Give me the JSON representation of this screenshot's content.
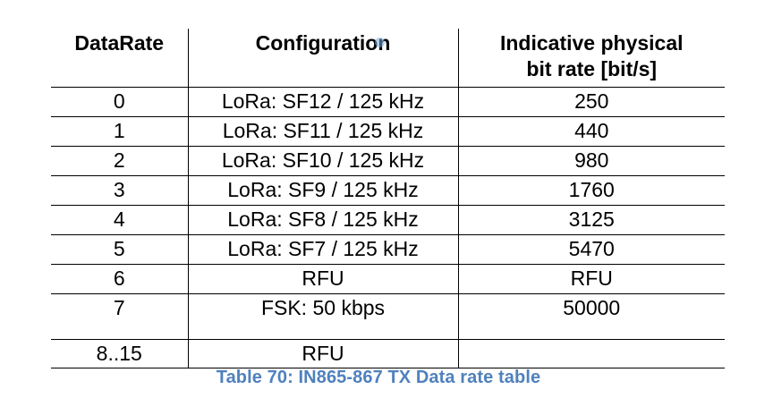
{
  "table": {
    "headers": [
      "DataRate",
      "Configuration",
      "Indicative physical bit rate [bit/s]"
    ],
    "header_lines": {
      "rate_line1": "Indicative physical",
      "rate_line2": "bit rate [bit/s]"
    },
    "rows": [
      {
        "datarate": "0",
        "configuration": "LoRa: SF12 / 125 kHz",
        "bitrate": "250"
      },
      {
        "datarate": "1",
        "configuration": "LoRa: SF11 / 125 kHz",
        "bitrate": "440"
      },
      {
        "datarate": "2",
        "configuration": "LoRa: SF10 / 125 kHz",
        "bitrate": "980"
      },
      {
        "datarate": "3",
        "configuration": "LoRa: SF9 / 125 kHz",
        "bitrate": "1760"
      },
      {
        "datarate": "4",
        "configuration": "LoRa: SF8 / 125 kHz",
        "bitrate": "3125"
      },
      {
        "datarate": "5",
        "configuration": "LoRa: SF7 / 125 kHz",
        "bitrate": "5470"
      },
      {
        "datarate": "6",
        "configuration": "RFU",
        "bitrate": "RFU"
      },
      {
        "datarate": "7",
        "configuration": "FSK: 50 kbps",
        "bitrate": "50000"
      },
      {
        "datarate": "8..15",
        "configuration": "RFU",
        "bitrate": ""
      }
    ]
  },
  "caption": "Table 70: IN865-867 TX Data rate table",
  "colors": {
    "caption": "#4f81bd",
    "cursor": "#78aadc"
  }
}
